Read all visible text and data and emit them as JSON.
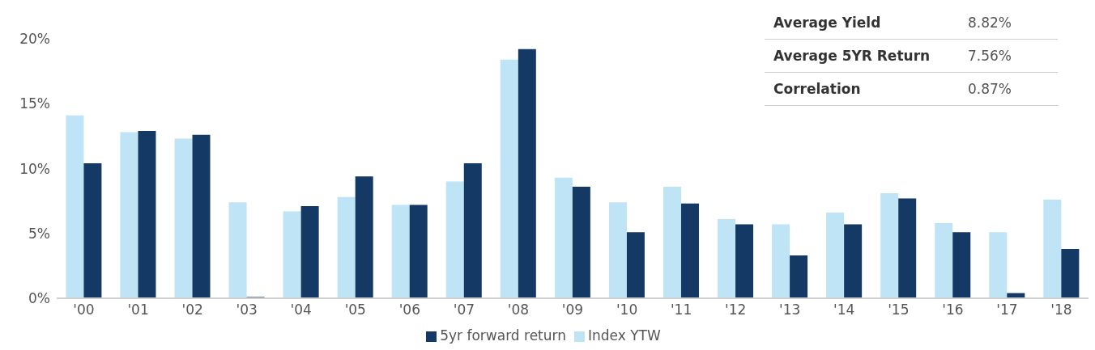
{
  "chart_data": {
    "type": "bar",
    "categories": [
      "'00",
      "'01",
      "'02",
      "'03",
      "'04",
      "'05",
      "'06",
      "'07",
      "'08",
      "'09",
      "'10",
      "'11",
      "'12",
      "'13",
      "'14",
      "'15",
      "'16",
      "'17",
      "'18"
    ],
    "series": [
      {
        "name": "Index YTW",
        "color": "#bee4f6",
        "values": [
          14.1,
          12.8,
          12.3,
          7.4,
          6.7,
          7.8,
          7.2,
          9.0,
          18.4,
          9.3,
          7.4,
          8.6,
          6.1,
          5.7,
          6.6,
          8.1,
          5.8,
          5.1,
          7.6
        ]
      },
      {
        "name": "5yr forward return",
        "color": "#143964",
        "values": [
          10.4,
          12.9,
          12.6,
          0.1,
          7.1,
          9.4,
          7.2,
          10.4,
          19.2,
          8.6,
          5.1,
          7.3,
          5.7,
          3.3,
          5.7,
          7.7,
          5.1,
          0.4,
          3.8
        ]
      }
    ],
    "ylim": [
      0,
      20
    ],
    "yticks": [
      {
        "value": 0,
        "label": "0%"
      },
      {
        "value": 5,
        "label": "5%"
      },
      {
        "value": 10,
        "label": "10%"
      },
      {
        "value": 15,
        "label": "15%"
      },
      {
        "value": 20,
        "label": "20%"
      }
    ],
    "grid": false,
    "legend": "bottom",
    "annotations": [
      "Average Yield",
      "8.82%",
      "Average 5YR Return",
      "7.56%",
      "Correlation",
      "0.87%"
    ]
  }
}
